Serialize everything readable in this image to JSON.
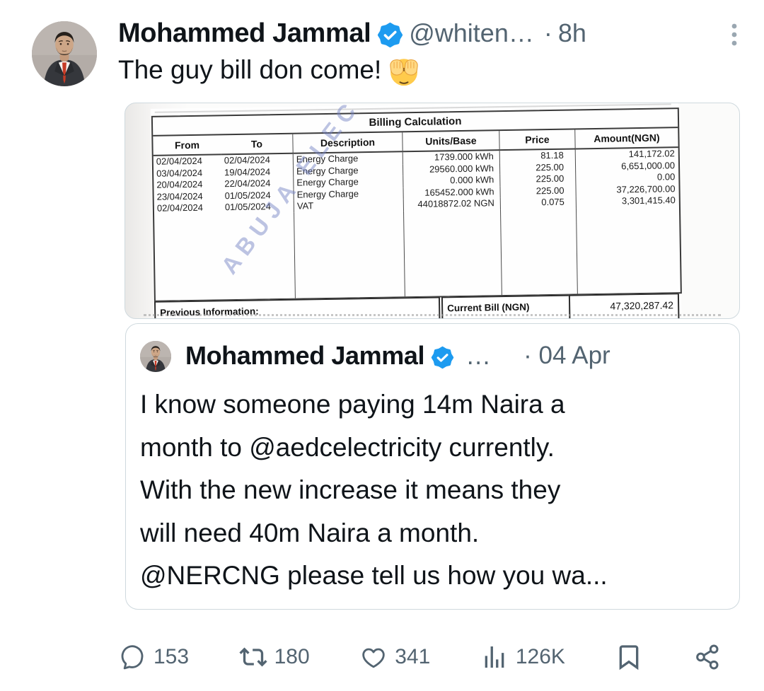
{
  "tweet": {
    "author": {
      "name": "Mohammed Jammal",
      "handle": "@whiten…",
      "separator": "·",
      "time": "8h"
    },
    "text": "The guy bill don come!",
    "emoji": "🫣"
  },
  "bill": {
    "title": "Billing Calculation",
    "columns": [
      "From",
      "To",
      "Description",
      "Units/Base",
      "Price",
      "Amount(NGN)"
    ],
    "rows": [
      [
        "02/04/2024",
        "02/04/2024",
        "Energy Charge",
        "1739.000 kWh",
        "81.18",
        "141,172.02"
      ],
      [
        "03/04/2024",
        "19/04/2024",
        "Energy Charge",
        "29560.000 kWh",
        "225.00",
        "6,651,000.00"
      ],
      [
        "20/04/2024",
        "22/04/2024",
        "Energy Charge",
        "0.000 kWh",
        "225.00",
        "0.00"
      ],
      [
        "23/04/2024",
        "01/05/2024",
        "Energy Charge",
        "165452.000 kWh",
        "225.00",
        "37,226,700.00"
      ],
      [
        "02/04/2024",
        "01/05/2024",
        "VAT",
        "44018872.02 NGN",
        "0.075",
        "3,301,415.40"
      ]
    ],
    "watermark": "ABUJA ELECTRIC",
    "footer": {
      "previous_label": "Previous Information:",
      "current_label": "Current Bill (NGN)",
      "current_value": "47,320,287.42"
    }
  },
  "quote": {
    "author": {
      "name": "Mohammed Jammal",
      "handle_ellipsis": "…",
      "date": "· 04 Apr"
    },
    "lines": [
      "I know someone paying 14m Naira a",
      "month to @aedcelectricity currently.",
      "With the new increase it means they",
      "will need 40m Naira a month.",
      "@NERCNG please tell us how you wa..."
    ]
  },
  "actions": {
    "reply": "153",
    "repost": "180",
    "like": "341",
    "views": "126K"
  },
  "icons": {
    "verified": "verified-seal",
    "more": "vertical-ellipsis",
    "reply": "reply-bubble",
    "repost": "repost-arrows",
    "like": "heart-outline",
    "views": "bar-chart",
    "bookmark": "bookmark-outline",
    "share": "share-network",
    "emoji": "face-with-peeking-eye"
  },
  "colors": {
    "accent_blue": "#1d9bf0",
    "text_primary": "#0f1419",
    "text_secondary": "#536471",
    "card_border": "#cfd9de",
    "watermark_blue": "#7683c4"
  }
}
